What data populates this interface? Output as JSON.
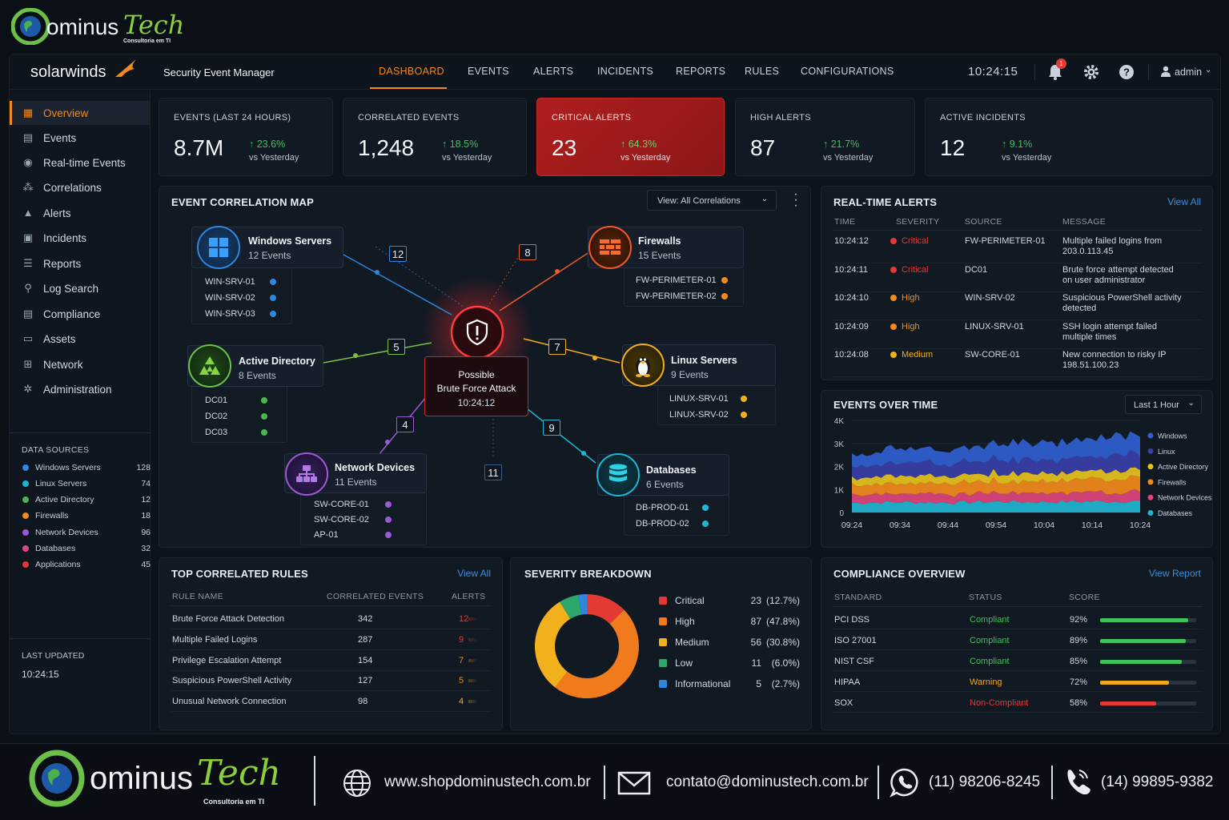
{
  "brand": {
    "logo_word": "ominus",
    "logo_script": "Tech",
    "logo_sub": "Consultoria em TI"
  },
  "app": {
    "vendor": "solarwinds",
    "product": "Security Event Manager"
  },
  "nav": {
    "tabs": [
      "DASHBOARD",
      "EVENTS",
      "ALERTS",
      "INCIDENTS",
      "REPORTS",
      "RULES",
      "CONFIGURATIONS"
    ],
    "active": "DASHBOARD",
    "clock": "10:24:15",
    "notif_count": "1",
    "user": "admin"
  },
  "sidebar": {
    "items": [
      "Overview",
      "Events",
      "Real-time Events",
      "Correlations",
      "Alerts",
      "Incidents",
      "Reports",
      "Log Search",
      "Compliance",
      "Assets",
      "Network",
      "Administration"
    ],
    "data_sources_title": "DATA SOURCES",
    "data_sources": [
      {
        "name": "Windows Servers",
        "count": "128",
        "color": "#2e86de"
      },
      {
        "name": "Linux Servers",
        "count": "74",
        "color": "#1fb6d4"
      },
      {
        "name": "Active Directory",
        "count": "12",
        "color": "#49b84b"
      },
      {
        "name": "Firewalls",
        "count": "18",
        "color": "#f28a1c"
      },
      {
        "name": "Network Devices",
        "count": "96",
        "color": "#9b59d6"
      },
      {
        "name": "Databases",
        "count": "32",
        "color": "#e0457b"
      },
      {
        "name": "Applications",
        "count": "45",
        "color": "#e53935"
      }
    ],
    "last_updated_label": "LAST UPDATED",
    "last_updated": "10:24:15"
  },
  "kpis": [
    {
      "label": "EVENTS (LAST 24 HOURS)",
      "value": "8.7M",
      "change": "23.6%",
      "vs": "vs Yesterday"
    },
    {
      "label": "CORRELATED EVENTS",
      "value": "1,248",
      "change": "18.5%",
      "vs": "vs Yesterday"
    },
    {
      "label": "CRITICAL ALERTS",
      "value": "23",
      "change": "64.3%",
      "vs": "vs Yesterday"
    },
    {
      "label": "HIGH ALERTS",
      "value": "87",
      "change": "21.7%",
      "vs": "vs Yesterday"
    },
    {
      "label": "ACTIVE INCIDENTS",
      "value": "12",
      "change": "9.1%",
      "vs": "vs Yesterday"
    }
  ],
  "corr_map": {
    "title": "EVENT CORRELATION MAP",
    "view_select": "View: All Correlations",
    "center": {
      "line1": "Possible",
      "line2": "Brute Force Attack",
      "time": "10:24:12"
    },
    "nodes": [
      {
        "name": "Windows Servers",
        "sub": "12 Events",
        "hosts": [
          "WIN-SRV-01",
          "WIN-SRV-02",
          "WIN-SRV-03"
        ]
      },
      {
        "name": "Firewalls",
        "sub": "15 Events",
        "hosts": [
          "FW-PERIMETER-01",
          "FW-PERIMETER-02"
        ]
      },
      {
        "name": "Active Directory",
        "sub": "8 Events",
        "hosts": [
          "DC01",
          "DC02",
          "DC03"
        ]
      },
      {
        "name": "Linux Servers",
        "sub": "9 Events",
        "hosts": [
          "LINUX-SRV-01",
          "LINUX-SRV-02"
        ]
      },
      {
        "name": "Network Devices",
        "sub": "11 Events",
        "hosts": [
          "SW-CORE-01",
          "SW-CORE-02",
          "AP-01"
        ]
      },
      {
        "name": "Databases",
        "sub": "6 Events",
        "hosts": [
          "DB-PROD-01",
          "DB-PROD-02"
        ]
      }
    ],
    "badges": [
      "12",
      "8",
      "5",
      "7",
      "4",
      "9",
      "11"
    ]
  },
  "realtime_alerts": {
    "title": "REAL-TIME ALERTS",
    "view_all": "View All",
    "columns": [
      "TIME",
      "SEVERITY",
      "SOURCE",
      "MESSAGE"
    ],
    "rows": [
      {
        "time": "10:24:12",
        "severity": "Critical",
        "source": "FW-PERIMETER-01",
        "msg1": "Multiple failed logins from",
        "msg2": "203.0.113.45"
      },
      {
        "time": "10:24:11",
        "severity": "Critical",
        "source": "DC01",
        "msg1": "Brute force attempt detected",
        "msg2": "on user administrator"
      },
      {
        "time": "10:24:10",
        "severity": "High",
        "source": "WIN-SRV-02",
        "msg1": "Suspicious PowerShell activity",
        "msg2": "detected"
      },
      {
        "time": "10:24:09",
        "severity": "High",
        "source": "LINUX-SRV-01",
        "msg1": "SSH login attempt failed",
        "msg2": "multiple times"
      },
      {
        "time": "10:24:08",
        "severity": "Medium",
        "source": "SW-CORE-01",
        "msg1": "New connection to risky IP",
        "msg2": "198.51.100.23"
      }
    ]
  },
  "events_over_time": {
    "title": "EVENTS OVER TIME",
    "range_select": "Last 1 Hour"
  },
  "chart_data": {
    "type": "area",
    "stacked": true,
    "x": [
      "09:24",
      "09:34",
      "09:44",
      "09:54",
      "10:04",
      "10:14",
      "10:24"
    ],
    "ylim": [
      0,
      4000
    ],
    "yticks": [
      "0",
      "1K",
      "2K",
      "3K",
      "4K"
    ],
    "legend_position": "right",
    "series": [
      {
        "name": "Databases",
        "color": "#1fb6d4",
        "values": [
          420,
          450,
          430,
          470,
          460,
          480,
          500
        ]
      },
      {
        "name": "Network Devices",
        "color": "#e0457b",
        "values": [
          350,
          380,
          360,
          400,
          390,
          410,
          430
        ]
      },
      {
        "name": "Firewalls",
        "color": "#f28a1c",
        "values": [
          450,
          480,
          470,
          520,
          500,
          540,
          560
        ]
      },
      {
        "name": "Active Directory",
        "color": "#e8c21c",
        "values": [
          300,
          330,
          320,
          350,
          340,
          360,
          380
        ]
      },
      {
        "name": "Linux",
        "color": "#3a3fa8",
        "values": [
          500,
          560,
          540,
          600,
          580,
          620,
          700
        ]
      },
      {
        "name": "Windows",
        "color": "#2f5fd0",
        "values": [
          500,
          650,
          600,
          750,
          700,
          800,
          900
        ]
      }
    ]
  },
  "top_rules": {
    "title": "TOP CORRELATED RULES",
    "view_all": "View All",
    "columns": [
      "RULE NAME",
      "CORRELATED EVENTS",
      "ALERTS"
    ],
    "rows": [
      {
        "name": "Brute Force Attack Detection",
        "events": "342",
        "alerts": "12",
        "color": "#e53935"
      },
      {
        "name": "Multiple Failed Logins",
        "events": "287",
        "alerts": "9",
        "color": "#e53935"
      },
      {
        "name": "Privilege Escalation Attempt",
        "events": "154",
        "alerts": "7",
        "color": "#f28a1c"
      },
      {
        "name": "Suspicious PowerShell Activity",
        "events": "127",
        "alerts": "5",
        "color": "#f28a1c"
      },
      {
        "name": "Unusual Network Connection",
        "events": "98",
        "alerts": "4",
        "color": "#f2b01c"
      }
    ]
  },
  "severity": {
    "title": "SEVERITY BREAKDOWN",
    "items": [
      {
        "name": "Critical",
        "count": "23",
        "pct": "(12.7%)",
        "value": 12.7,
        "color": "#e53935"
      },
      {
        "name": "High",
        "count": "87",
        "pct": "(47.8%)",
        "value": 47.8,
        "color": "#f07a1c"
      },
      {
        "name": "Medium",
        "count": "56",
        "pct": "(30.8%)",
        "value": 30.8,
        "color": "#f2b01c"
      },
      {
        "name": "Low",
        "count": "11",
        "pct": "(6.0%)",
        "value": 6.0,
        "color": "#2ea86a"
      },
      {
        "name": "Informational",
        "count": "5",
        "pct": "(2.7%)",
        "value": 2.7,
        "color": "#2e86de"
      }
    ]
  },
  "compliance": {
    "title": "COMPLIANCE OVERVIEW",
    "view_report": "View Report",
    "columns": [
      "STANDARD",
      "STATUS",
      "SCORE"
    ],
    "rows": [
      {
        "standard": "PCI DSS",
        "status": "Compliant",
        "score": "92%",
        "value": 0.92,
        "color": "#3fc15b"
      },
      {
        "standard": "ISO 27001",
        "status": "Compliant",
        "score": "89%",
        "value": 0.89,
        "color": "#3fc15b"
      },
      {
        "standard": "NIST CSF",
        "status": "Compliant",
        "score": "85%",
        "value": 0.85,
        "color": "#3fc15b"
      },
      {
        "standard": "HIPAA",
        "status": "Warning",
        "score": "72%",
        "value": 0.72,
        "color": "#f2a61c"
      },
      {
        "standard": "SOX",
        "status": "Non-Compliant",
        "score": "58%",
        "value": 0.58,
        "color": "#e53935"
      }
    ]
  },
  "footer": {
    "website": "www.shopdominustech.com.br",
    "email": "contato@dominustech.com.br",
    "phone1": "(11) 98206-8245",
    "phone2": "(14) 99895-9382"
  }
}
